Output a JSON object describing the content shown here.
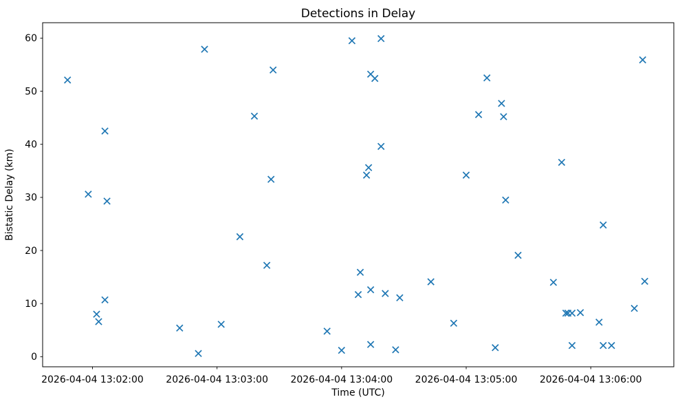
{
  "chart_data": {
    "type": "scatter",
    "title": "Detections in Delay",
    "xlabel": "Time (UTC)",
    "ylabel": "Bistatic Delay (km)",
    "date": "2026-04-04",
    "marker": "x",
    "marker_color": "#1f77b4",
    "axis_color": "#000000",
    "background_color": "#ffffff",
    "grid": false,
    "legend": null,
    "xlim": [
      "13:01:36",
      "13:06:40"
    ],
    "ylim": [
      -1.9,
      62.9
    ],
    "x_ticks": [
      {
        "time": "13:02:00",
        "label": "2026-04-04 13:02:00"
      },
      {
        "time": "13:03:00",
        "label": "2026-04-04 13:03:00"
      },
      {
        "time": "13:04:00",
        "label": "2026-04-04 13:04:00"
      },
      {
        "time": "13:05:00",
        "label": "2026-04-04 13:05:00"
      },
      {
        "time": "13:06:00",
        "label": "2026-04-04 13:06:00"
      }
    ],
    "y_ticks": [
      0,
      10,
      20,
      30,
      40,
      50,
      60
    ],
    "points": [
      {
        "time": "13:01:48",
        "delay_km": 52.1
      },
      {
        "time": "13:01:58",
        "delay_km": 30.6
      },
      {
        "time": "13:02:02",
        "delay_km": 8.0
      },
      {
        "time": "13:02:03",
        "delay_km": 6.6
      },
      {
        "time": "13:02:06",
        "delay_km": 42.5
      },
      {
        "time": "13:02:06",
        "delay_km": 10.7
      },
      {
        "time": "13:02:07",
        "delay_km": 29.3
      },
      {
        "time": "13:02:42",
        "delay_km": 5.4
      },
      {
        "time": "13:02:51",
        "delay_km": 0.6
      },
      {
        "time": "13:02:54",
        "delay_km": 57.9
      },
      {
        "time": "13:03:02",
        "delay_km": 6.1
      },
      {
        "time": "13:03:11",
        "delay_km": 22.6
      },
      {
        "time": "13:03:18",
        "delay_km": 45.3
      },
      {
        "time": "13:03:24",
        "delay_km": 17.2
      },
      {
        "time": "13:03:26",
        "delay_km": 33.4
      },
      {
        "time": "13:03:27",
        "delay_km": 54.0
      },
      {
        "time": "13:03:53",
        "delay_km": 4.8
      },
      {
        "time": "13:04:00",
        "delay_km": 1.2
      },
      {
        "time": "13:04:05",
        "delay_km": 59.5
      },
      {
        "time": "13:04:08",
        "delay_km": 11.7
      },
      {
        "time": "13:04:09",
        "delay_km": 15.9
      },
      {
        "time": "13:04:12",
        "delay_km": 34.2
      },
      {
        "time": "13:04:13",
        "delay_km": 35.6
      },
      {
        "time": "13:04:14",
        "delay_km": 53.2
      },
      {
        "time": "13:04:14",
        "delay_km": 12.6
      },
      {
        "time": "13:04:14",
        "delay_km": 2.3
      },
      {
        "time": "13:04:16",
        "delay_km": 52.4
      },
      {
        "time": "13:04:19",
        "delay_km": 59.9
      },
      {
        "time": "13:04:19",
        "delay_km": 39.6
      },
      {
        "time": "13:04:21",
        "delay_km": 11.9
      },
      {
        "time": "13:04:26",
        "delay_km": 1.3
      },
      {
        "time": "13:04:28",
        "delay_km": 11.1
      },
      {
        "time": "13:04:43",
        "delay_km": 14.1
      },
      {
        "time": "13:04:54",
        "delay_km": 6.3
      },
      {
        "time": "13:05:00",
        "delay_km": 34.2
      },
      {
        "time": "13:05:06",
        "delay_km": 45.6
      },
      {
        "time": "13:05:10",
        "delay_km": 52.5
      },
      {
        "time": "13:05:14",
        "delay_km": 1.7
      },
      {
        "time": "13:05:17",
        "delay_km": 47.7
      },
      {
        "time": "13:05:18",
        "delay_km": 45.2
      },
      {
        "time": "13:05:19",
        "delay_km": 29.5
      },
      {
        "time": "13:05:25",
        "delay_km": 19.1
      },
      {
        "time": "13:05:42",
        "delay_km": 14.0
      },
      {
        "time": "13:05:46",
        "delay_km": 36.6
      },
      {
        "time": "13:05:48",
        "delay_km": 8.2
      },
      {
        "time": "13:05:49",
        "delay_km": 8.2
      },
      {
        "time": "13:05:51",
        "delay_km": 8.2
      },
      {
        "time": "13:05:51",
        "delay_km": 2.1
      },
      {
        "time": "13:05:55",
        "delay_km": 8.3
      },
      {
        "time": "13:06:04",
        "delay_km": 6.5
      },
      {
        "time": "13:06:06",
        "delay_km": 24.8
      },
      {
        "time": "13:06:06",
        "delay_km": 2.1
      },
      {
        "time": "13:06:10",
        "delay_km": 2.1
      },
      {
        "time": "13:06:21",
        "delay_km": 9.1
      },
      {
        "time": "13:06:25",
        "delay_km": 55.9
      },
      {
        "time": "13:06:26",
        "delay_km": 14.2
      }
    ]
  }
}
